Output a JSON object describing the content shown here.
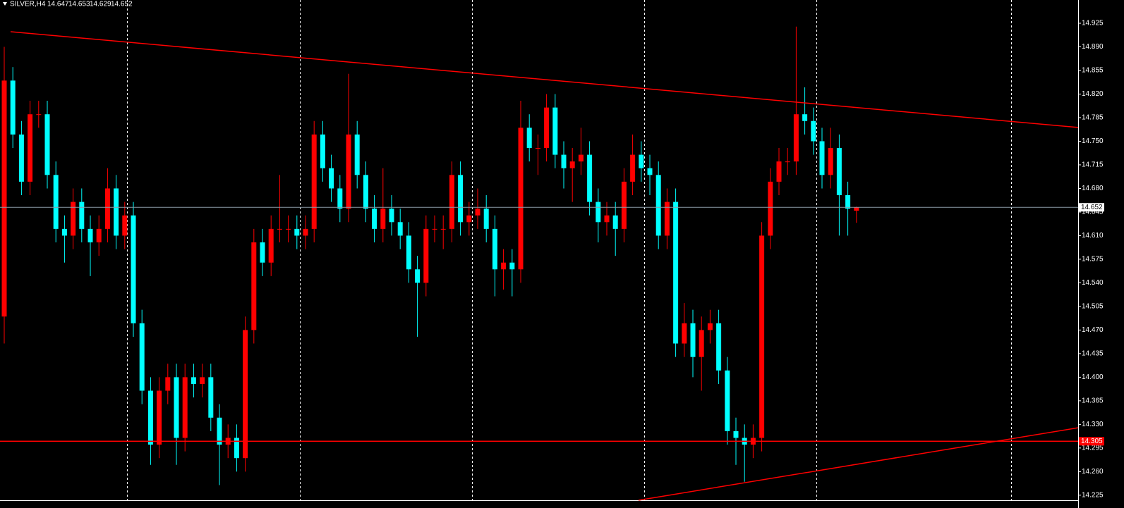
{
  "chart_data": {
    "type": "candlestick",
    "title": "SILVER,H4",
    "up_color": "#ff0000",
    "down_color": "#00ffff",
    "ylim": [
      14.2175,
      14.9595
    ],
    "yticks": [
      14.925,
      {
        "value": 14.89,
        "label": "14.890"
      },
      14.855,
      {
        "value": 14.82,
        "label": "14.820"
      },
      14.785,
      {
        "value": 14.75,
        "label": "14.750"
      },
      14.715,
      {
        "value": 14.68,
        "label": "14.680"
      },
      14.645,
      {
        "value": 14.61,
        "label": "14.610"
      },
      14.575,
      {
        "value": 14.54,
        "label": "14.540"
      },
      14.505,
      {
        "value": 14.47,
        "label": "14.470"
      },
      14.435,
      {
        "value": 14.4,
        "label": "14.400"
      },
      14.365,
      {
        "value": 14.33,
        "label": "14.330"
      },
      14.295,
      {
        "value": 14.26,
        "label": "14.260"
      },
      14.225
    ],
    "open": [
      14.49,
      14.84,
      14.76,
      14.69,
      14.79,
      14.79,
      14.7,
      14.62,
      14.61,
      14.66,
      14.62,
      14.6,
      14.62,
      14.68,
      14.61,
      14.64,
      14.48,
      14.38,
      14.3,
      14.38,
      14.4,
      14.31,
      14.4,
      14.39,
      14.4,
      14.34,
      14.3,
      14.31,
      14.28,
      14.47,
      14.6,
      14.57,
      14.62,
      14.62,
      14.62,
      14.61,
      14.62,
      14.76,
      14.71,
      14.68,
      14.65,
      14.76,
      14.7,
      14.65,
      14.62,
      14.65,
      14.63,
      14.61,
      14.56,
      14.54,
      14.62,
      14.62,
      14.62,
      14.7,
      14.63,
      14.64,
      14.65,
      14.62,
      14.56,
      14.57,
      14.56,
      14.77,
      14.74,
      14.74,
      14.8,
      14.73,
      14.71,
      14.72,
      14.73,
      14.66,
      14.63,
      14.64,
      14.62,
      14.69,
      14.73,
      14.71,
      14.7,
      14.61,
      14.66,
      14.45,
      14.48,
      14.43,
      14.47,
      14.48,
      14.41,
      14.32,
      14.31,
      14.3,
      14.31,
      14.61,
      14.69,
      14.72,
      14.72,
      14.79,
      14.78,
      14.75,
      14.7,
      14.74,
      14.67,
      14.647
    ],
    "high": [
      14.89,
      14.86,
      14.78,
      14.81,
      14.81,
      14.81,
      14.72,
      14.64,
      14.68,
      14.68,
      14.64,
      14.64,
      14.71,
      14.7,
      14.66,
      14.66,
      14.5,
      14.4,
      14.4,
      14.42,
      14.42,
      14.42,
      14.42,
      14.42,
      14.42,
      14.36,
      14.33,
      14.33,
      14.49,
      14.62,
      14.62,
      14.64,
      14.7,
      14.64,
      14.64,
      14.64,
      14.78,
      14.78,
      14.73,
      14.7,
      14.85,
      14.78,
      14.72,
      14.67,
      14.71,
      14.67,
      14.65,
      14.63,
      14.58,
      14.64,
      14.64,
      14.64,
      14.72,
      14.72,
      14.66,
      14.68,
      14.67,
      14.64,
      14.59,
      14.59,
      14.81,
      14.79,
      14.76,
      14.82,
      14.82,
      14.75,
      14.74,
      14.77,
      14.75,
      14.68,
      14.66,
      14.66,
      14.71,
      14.76,
      14.75,
      14.73,
      14.72,
      14.68,
      14.68,
      14.51,
      14.5,
      14.49,
      14.5,
      14.5,
      14.43,
      14.34,
      14.33,
      14.33,
      14.63,
      14.71,
      14.74,
      14.74,
      14.92,
      14.83,
      14.8,
      14.77,
      14.77,
      14.76,
      14.69,
      14.653
    ],
    "low": [
      14.45,
      14.74,
      14.67,
      14.67,
      14.77,
      14.68,
      14.6,
      14.57,
      14.59,
      14.6,
      14.55,
      14.58,
      14.6,
      14.59,
      14.59,
      14.46,
      14.36,
      14.27,
      14.28,
      14.36,
      14.27,
      14.29,
      14.37,
      14.37,
      14.32,
      14.24,
      14.28,
      14.26,
      14.26,
      14.45,
      14.55,
      14.55,
      14.6,
      14.6,
      14.59,
      14.59,
      14.6,
      14.69,
      14.66,
      14.63,
      14.63,
      14.68,
      14.63,
      14.6,
      14.6,
      14.61,
      14.59,
      14.54,
      14.46,
      14.52,
      14.6,
      14.59,
      14.6,
      14.61,
      14.61,
      14.62,
      14.6,
      14.52,
      14.53,
      14.52,
      14.54,
      14.72,
      14.7,
      14.72,
      14.71,
      14.68,
      14.66,
      14.7,
      14.64,
      14.6,
      14.61,
      14.58,
      14.6,
      14.67,
      14.69,
      14.67,
      14.59,
      14.59,
      14.43,
      14.43,
      14.4,
      14.38,
      14.45,
      14.39,
      14.3,
      14.27,
      14.245,
      14.28,
      14.29,
      14.59,
      14.67,
      14.7,
      14.7,
      14.76,
      14.73,
      14.68,
      14.68,
      14.61,
      14.61,
      14.629
    ],
    "close": [
      14.84,
      14.76,
      14.69,
      14.79,
      14.79,
      14.7,
      14.62,
      14.61,
      14.66,
      14.62,
      14.6,
      14.62,
      14.68,
      14.61,
      14.64,
      14.48,
      14.38,
      14.3,
      14.38,
      14.4,
      14.31,
      14.4,
      14.39,
      14.4,
      14.34,
      14.3,
      14.31,
      14.28,
      14.47,
      14.6,
      14.57,
      14.62,
      14.62,
      14.62,
      14.61,
      14.62,
      14.76,
      14.71,
      14.68,
      14.65,
      14.76,
      14.7,
      14.65,
      14.62,
      14.65,
      14.63,
      14.61,
      14.56,
      14.54,
      14.62,
      14.62,
      14.62,
      14.7,
      14.63,
      14.64,
      14.65,
      14.62,
      14.56,
      14.57,
      14.56,
      14.77,
      14.74,
      14.74,
      14.8,
      14.73,
      14.71,
      14.72,
      14.73,
      14.66,
      14.63,
      14.64,
      14.62,
      14.69,
      14.73,
      14.71,
      14.7,
      14.61,
      14.66,
      14.45,
      14.48,
      14.43,
      14.47,
      14.48,
      14.41,
      14.32,
      14.31,
      14.3,
      14.31,
      14.61,
      14.69,
      14.72,
      14.72,
      14.79,
      14.78,
      14.75,
      14.7,
      14.74,
      14.67,
      14.65,
      14.652
    ],
    "hlines": [
      14.305
    ],
    "trendlines": [
      {
        "start": 14.9125,
        "end": 14.7705
      },
      {
        "start": 14.2175,
        "end": 14.325
      }
    ]
  }
}
